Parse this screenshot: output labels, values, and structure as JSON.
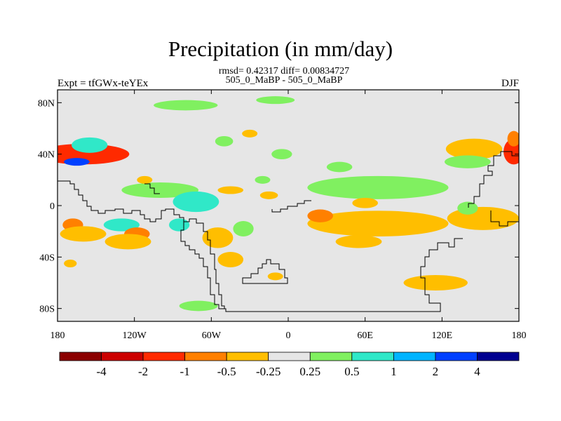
{
  "header": {
    "title": "Precipitation (in mm/day)",
    "stats": "rmsd= 0.42317 diff= 0.00834727",
    "cases": "505_0_MaBP - 505_0_MaBP",
    "left": "Expt = tfGWx-teYEx",
    "right": "DJF"
  },
  "chart_data": {
    "type": "heatmap",
    "title": "Precipitation (in mm/day)",
    "xlabel": "",
    "ylabel": "",
    "xlim": [
      -180,
      180
    ],
    "ylim": [
      -90,
      90
    ],
    "x_ticks": [
      {
        "v": -180,
        "label": "180"
      },
      {
        "v": -120,
        "label": "120W"
      },
      {
        "v": -60,
        "label": "60W"
      },
      {
        "v": 0,
        "label": "0"
      },
      {
        "v": 60,
        "label": "60E"
      },
      {
        "v": 120,
        "label": "120E"
      },
      {
        "v": 180,
        "label": "180"
      }
    ],
    "y_ticks": [
      {
        "v": 80,
        "label": "80N"
      },
      {
        "v": 40,
        "label": "40N"
      },
      {
        "v": 0,
        "label": "0"
      },
      {
        "v": -40,
        "label": "40S"
      },
      {
        "v": -80,
        "label": "80S"
      }
    ],
    "colorbar": {
      "levels": [
        "-4",
        "-2",
        "-1",
        "-0.5",
        "-0.25",
        "0.25",
        "0.5",
        "1",
        "2",
        "4"
      ],
      "colors": [
        "#8b0000",
        "#cc0000",
        "#ff2a00",
        "#ff8000",
        "#ffbe00",
        "#e6e6e6",
        "#80f060",
        "#30e8c8",
        "#00b4ff",
        "#0040ff",
        "#000090"
      ]
    },
    "background_color": "#e6e6e6",
    "anomaly_regions": [
      {
        "lon": -170,
        "lat": 40,
        "rlon": 16,
        "rlat": 3.5,
        "level": 0
      },
      {
        "lon": -165,
        "lat": 40,
        "rlon": 28,
        "rlat": 6,
        "level": 1
      },
      {
        "lon": -160,
        "lat": 40,
        "rlon": 36,
        "rlat": 8,
        "level": 2
      },
      {
        "lon": -160,
        "lat": 46,
        "rlon": 8,
        "rlat": 4,
        "level": 8
      },
      {
        "lon": -165,
        "lat": 34,
        "rlon": 10,
        "rlat": 3,
        "level": 9
      },
      {
        "lon": -155,
        "lat": 47,
        "rlon": 14,
        "rlat": 6,
        "level": 7
      },
      {
        "lon": 177,
        "lat": 40,
        "rlon": 5,
        "rlat": 7,
        "level": 0
      },
      {
        "lon": 176,
        "lat": 42,
        "rlon": 8,
        "rlat": 10,
        "level": 2
      },
      {
        "lon": 176,
        "lat": 52,
        "rlon": 5,
        "rlat": 6,
        "level": 3
      },
      {
        "lon": 150,
        "lat": 47,
        "rlon": 8,
        "rlat": 4,
        "level": 2
      },
      {
        "lon": 145,
        "lat": 45,
        "rlon": 16,
        "rlat": 6,
        "level": 3
      },
      {
        "lon": 145,
        "lat": 44,
        "rlon": 22,
        "rlat": 8,
        "level": 4
      },
      {
        "lon": 140,
        "lat": 34,
        "rlon": 18,
        "rlat": 5,
        "level": 6
      },
      {
        "lon": 75,
        "lat": 14,
        "rlon": 42,
        "rlat": 6,
        "level": 7
      },
      {
        "lon": 70,
        "lat": 14,
        "rlon": 55,
        "rlat": 9,
        "level": 6
      },
      {
        "lon": 75,
        "lat": -12,
        "rlon": 24,
        "rlat": 5,
        "level": 3
      },
      {
        "lon": 70,
        "lat": -14,
        "rlon": 55,
        "rlat": 10,
        "level": 4
      },
      {
        "lon": 55,
        "lat": -28,
        "rlon": 18,
        "rlat": 5,
        "level": 4
      },
      {
        "lon": 160,
        "lat": -10,
        "rlon": 12,
        "rlat": 4,
        "level": 3
      },
      {
        "lon": 152,
        "lat": -10,
        "rlon": 28,
        "rlat": 9,
        "level": 4
      },
      {
        "lon": 140,
        "lat": -2,
        "rlon": 8,
        "rlat": 5,
        "level": 6
      },
      {
        "lon": 115,
        "lat": -60,
        "rlon": 25,
        "rlat": 6,
        "level": 4
      },
      {
        "lon": -100,
        "lat": 12,
        "rlon": 30,
        "rlat": 6,
        "level": 6
      },
      {
        "lon": -72,
        "lat": 3,
        "rlon": 18,
        "rlat": 8,
        "level": 7
      },
      {
        "lon": -45,
        "lat": 12,
        "rlon": 10,
        "rlat": 3,
        "level": 4
      },
      {
        "lon": -130,
        "lat": -15,
        "rlon": 14,
        "rlat": 5,
        "level": 7
      },
      {
        "lon": -118,
        "lat": -22,
        "rlon": 10,
        "rlat": 5,
        "level": 3
      },
      {
        "lon": -125,
        "lat": -28,
        "rlon": 18,
        "rlat": 6,
        "level": 4
      },
      {
        "lon": -168,
        "lat": -15,
        "rlon": 8,
        "rlat": 5,
        "level": 3
      },
      {
        "lon": -160,
        "lat": -22,
        "rlon": 18,
        "rlat": 6,
        "level": 4
      },
      {
        "lon": -58,
        "lat": -22,
        "rlon": 5,
        "rlat": 4,
        "level": 2
      },
      {
        "lon": -55,
        "lat": -25,
        "rlon": 12,
        "rlat": 8,
        "level": 4
      },
      {
        "lon": -48,
        "lat": -42,
        "rlon": 6,
        "rlat": 4,
        "level": 3
      },
      {
        "lon": -45,
        "lat": -42,
        "rlon": 10,
        "rlat": 6,
        "level": 4
      },
      {
        "lon": -35,
        "lat": -18,
        "rlon": 8,
        "rlat": 6,
        "level": 6
      },
      {
        "lon": -85,
        "lat": -15,
        "rlon": 8,
        "rlat": 5,
        "level": 7
      },
      {
        "lon": -70,
        "lat": -78,
        "rlon": 15,
        "rlat": 4,
        "level": 6
      },
      {
        "lon": -50,
        "lat": 50,
        "rlon": 7,
        "rlat": 4,
        "level": 6
      },
      {
        "lon": -5,
        "lat": 40,
        "rlon": 8,
        "rlat": 4,
        "level": 6
      },
      {
        "lon": 40,
        "lat": 30,
        "rlon": 10,
        "rlat": 4,
        "level": 6
      },
      {
        "lon": -80,
        "lat": 78,
        "rlon": 25,
        "rlat": 4,
        "level": 6
      },
      {
        "lon": -10,
        "lat": 82,
        "rlon": 15,
        "rlat": 3,
        "level": 6
      },
      {
        "lon": -30,
        "lat": 56,
        "rlon": 6,
        "rlat": 3,
        "level": 4
      },
      {
        "lon": -112,
        "lat": 20,
        "rlon": 6,
        "rlat": 3,
        "level": 4
      },
      {
        "lon": -15,
        "lat": 8,
        "rlon": 7,
        "rlat": 3,
        "level": 4
      },
      {
        "lon": 25,
        "lat": -8,
        "rlon": 10,
        "rlat": 5,
        "level": 3
      },
      {
        "lon": -10,
        "lat": -55,
        "rlon": 6,
        "rlat": 3,
        "level": 4
      },
      {
        "lon": 60,
        "lat": 2,
        "rlon": 10,
        "rlat": 4,
        "level": 4
      },
      {
        "lon": -170,
        "lat": -45,
        "rlon": 5,
        "rlat": 3,
        "level": 4
      },
      {
        "lon": -20,
        "lat": 20,
        "rlon": 6,
        "rlat": 3,
        "level": 6
      }
    ]
  }
}
